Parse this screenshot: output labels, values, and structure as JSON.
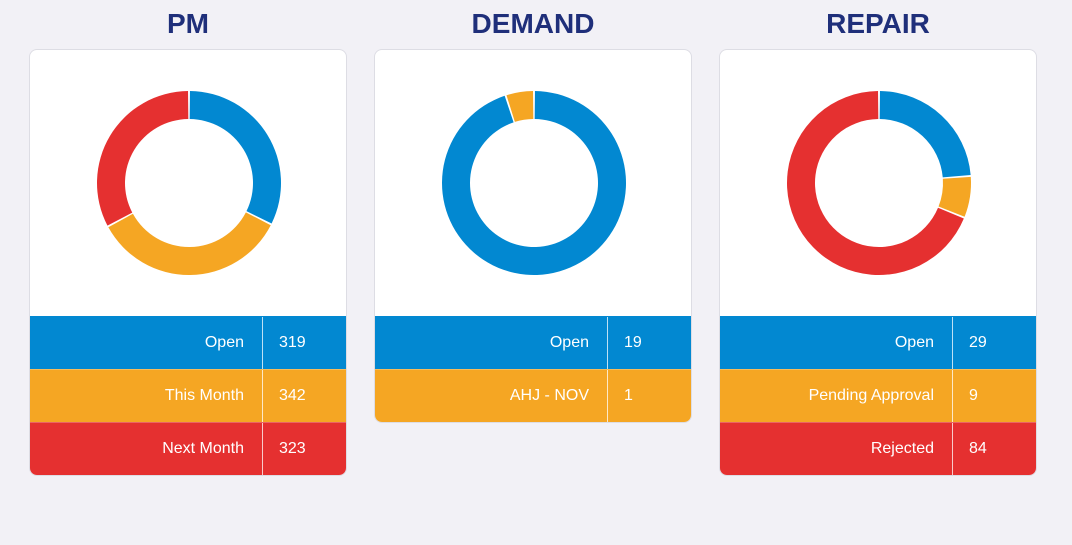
{
  "colors": {
    "blue": "#0288d1",
    "orange": "#f5a623",
    "red": "#e53030"
  },
  "panels": [
    {
      "title": "PM",
      "rows": [
        {
          "label": "Open",
          "value": "319",
          "color": "#0288d1"
        },
        {
          "label": "This Month",
          "value": "342",
          "color": "#f5a623"
        },
        {
          "label": "Next Month",
          "value": "323",
          "color": "#e53030"
        }
      ]
    },
    {
      "title": "DEMAND",
      "rows": [
        {
          "label": "Open",
          "value": "19",
          "color": "#0288d1"
        },
        {
          "label": "AHJ - NOV",
          "value": "1",
          "color": "#f5a623"
        }
      ]
    },
    {
      "title": "REPAIR",
      "rows": [
        {
          "label": "Open",
          "value": "29",
          "color": "#0288d1"
        },
        {
          "label": "Pending Approval",
          "value": "9",
          "color": "#f5a623"
        },
        {
          "label": "Rejected",
          "value": "84",
          "color": "#e53030"
        }
      ]
    }
  ]
}
